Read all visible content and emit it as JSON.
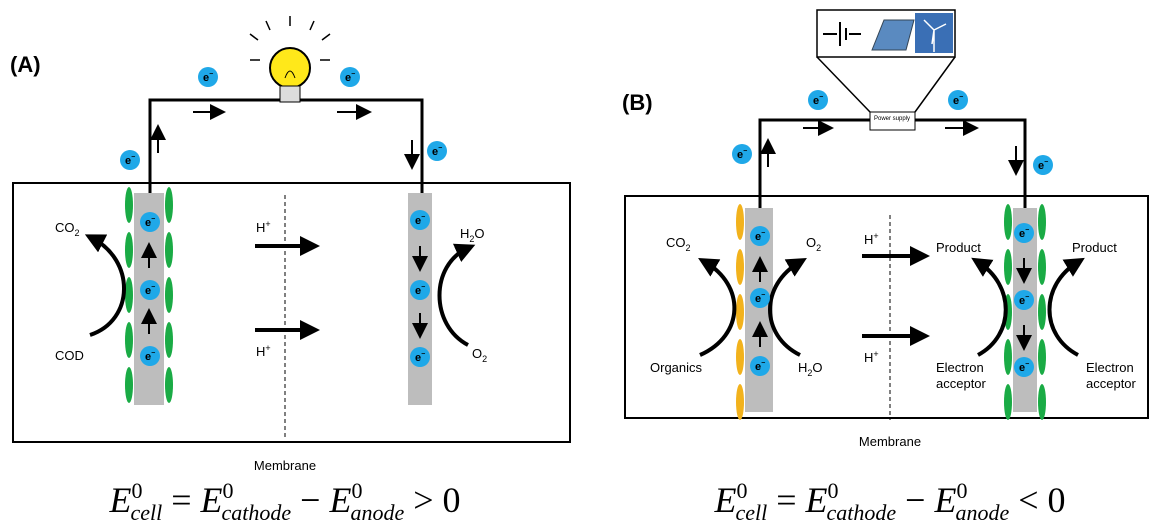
{
  "electron": {
    "base": "e",
    "sup": "−"
  },
  "panel_a": {
    "label": "(A)",
    "membrane": "Membrane",
    "co2": {
      "base": "CO",
      "sub": "2"
    },
    "cod": "COD",
    "h_plus": {
      "base": "H",
      "sup": "+"
    },
    "h2o": {
      "base": "H",
      "sub": "2",
      "rest": "O"
    },
    "o2": {
      "base": "O",
      "sub": "2"
    },
    "equation": {
      "lhs": {
        "base": "E",
        "sup": "0",
        "sub": "cell"
      },
      "eq": "=",
      "t1": {
        "base": "E",
        "sup": "0",
        "sub": "cathode"
      },
      "minus": "−",
      "t2": {
        "base": "E",
        "sup": "0",
        "sub": "anode"
      },
      "rel": "> 0"
    }
  },
  "panel_b": {
    "label": "(B)",
    "membrane": "Membrane",
    "power_supply": "Power supply",
    "co2": {
      "base": "CO",
      "sub": "2"
    },
    "o2": {
      "base": "O",
      "sub": "2"
    },
    "organics": "Organics",
    "h2o": {
      "base": "H",
      "sub": "2",
      "rest": "O"
    },
    "h_plus": {
      "base": "H",
      "sup": "+"
    },
    "product": "Product",
    "electron_acceptor": [
      "Electron",
      "acceptor"
    ],
    "equation": {
      "lhs": {
        "base": "E",
        "sup": "0",
        "sub": "cell"
      },
      "eq": "=",
      "t1": {
        "base": "E",
        "sup": "0",
        "sub": "cathode"
      },
      "minus": "−",
      "t2": {
        "base": "E",
        "sup": "0",
        "sub": "anode"
      },
      "rel": "< 0"
    }
  }
}
